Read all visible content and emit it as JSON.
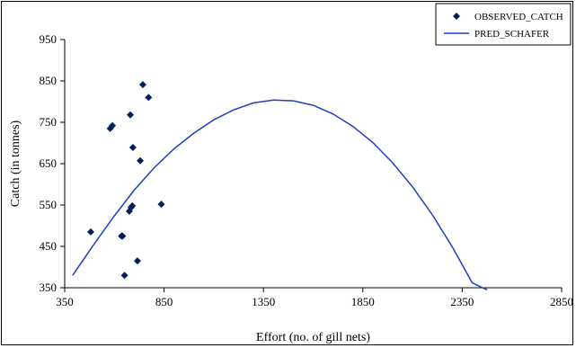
{
  "chart_data": {
    "type": "scatter",
    "xlabel": "Effort (no. of gill nets)",
    "ylabel": "Catch (in tonnes)",
    "xlim": [
      350,
      2850
    ],
    "ylim": [
      350,
      950
    ],
    "x_ticks": [
      350,
      850,
      1350,
      1850,
      2350,
      2850
    ],
    "y_ticks": [
      350,
      450,
      550,
      650,
      750,
      850,
      950
    ],
    "grid": false,
    "legend_position": "top-right",
    "series": [
      {
        "name": "OBSERVED_CATCH",
        "type": "scatter",
        "marker": "diamond",
        "color": "#00205b",
        "x": [
          481,
          579,
          590,
          636,
          641,
          651,
          675,
          680,
          684,
          690,
          693,
          716,
          730,
          743,
          772,
          836
        ],
        "y": [
          485,
          735,
          742,
          475,
          475,
          380,
          535,
          768,
          544,
          548,
          689,
          415,
          657,
          841,
          810,
          552
        ]
      },
      {
        "name": "PRED_SCHAFER",
        "type": "line",
        "color": "#1f3fbf",
        "x": [
          390,
          500,
          600,
          700,
          800,
          900,
          1000,
          1100,
          1200,
          1300,
          1400,
          1500,
          1600,
          1700,
          1800,
          1900,
          2000,
          2100,
          2200,
          2300,
          2400,
          2475
        ],
        "y": [
          380,
          457,
          524,
          586,
          640,
          686,
          724,
          756,
          780,
          797,
          804,
          802,
          791,
          770,
          740,
          701,
          652,
          594,
          526,
          449,
          362,
          345
        ]
      }
    ]
  }
}
